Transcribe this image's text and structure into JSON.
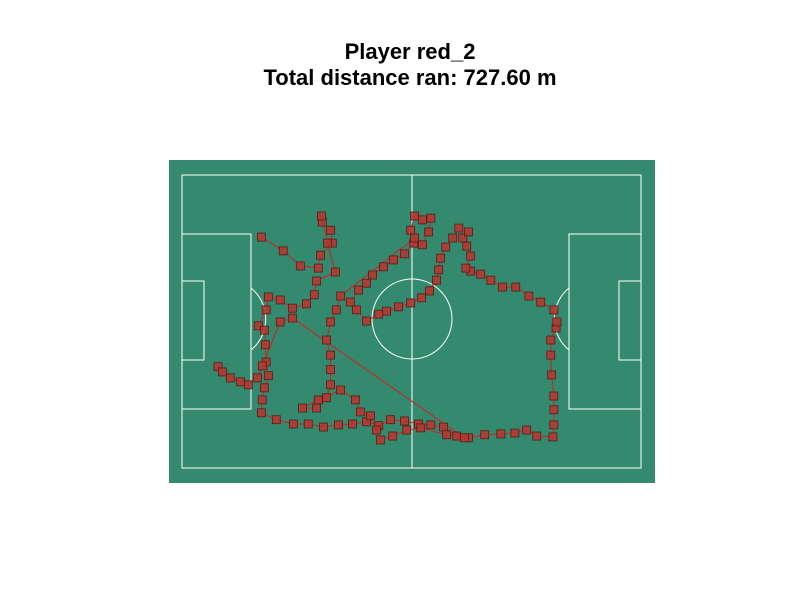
{
  "chart_data": {
    "type": "line",
    "marker": "square",
    "title": [
      "Player red_2",
      "Total distance ran: 727.60 m"
    ],
    "line_color": "#d42020",
    "marker_color": "#b03a33",
    "marker_edge": "#5a1a16",
    "pitch_color": "#338a6e",
    "xlim": [
      -3,
      108
    ],
    "ylim": [
      71.5,
      -3.5
    ],
    "x": [
      18.1,
      23.1,
      27.0,
      31.1,
      31.6,
      34.3,
      33.9,
      32.0,
      31.8,
      33.2,
      35.0,
      30.7,
      30.2,
      28.4,
      25.2,
      22.4,
      19.7,
      19.2,
      17.4,
      18.8,
      19.0,
      19.2,
      19.7,
      18.8,
      18.3,
      18.1,
      21.5,
      25.4,
      28.8,
      32.3,
      35.7,
      38.9,
      42.1,
      44.9,
      47.6,
      50.8,
      54.0,
      56.8,
      59.7,
      62.7,
      65.4,
      69.1,
      72.8,
      76.0,
      78.7,
      81.0,
      84.7,
      84.9,
      84.9,
      84.9,
      84.4,
      84.2,
      84.2,
      85.4,
      85.6,
      84.9,
      81.9,
      79.2,
      76.2,
      73.2,
      70.5,
      68.2,
      65.9,
      64.8,
      65.9,
      65.0,
      64.1,
      65.4,
      63.2,
      61.8,
      60.2,
      59.0,
      58.6,
      58.1,
      56.5,
      54.7,
      52.2,
      49.4,
      46.7,
      44.9,
      42.1,
      39.8,
      38.4,
      40.3,
      42.1,
      43.5,
      46.0,
      48.3,
      50.8,
      52.9,
      52.2,
      53.1,
      54.9,
      56.8,
      56.3,
      54.9,
      53.1,
      36.2,
      35.2,
      33.9,
      33.0,
      33.9,
      33.9,
      33.9,
      33.0,
      30.7,
      27.5,
      31.1,
      36.2,
      39.6,
      40.7,
      43.0,
      44.4,
      45.3,
      48.1,
      51.3,
      54.5,
      60.4,
      64.5,
      25.2,
      22.4,
      18.3,
      17.2,
      15.1,
      13.3,
      11.0,
      8.2,
      9.2
    ],
    "y": [
      14.4,
      17.6,
      21.1,
      21.6,
      18.6,
      15.8,
      12.8,
      10.9,
      9.5,
      15.8,
      22.5,
      24.6,
      27.8,
      29.9,
      30.9,
      29.0,
      28.3,
      31.3,
      35.0,
      36.0,
      39.4,
      43.4,
      46.6,
      49.4,
      52.2,
      55.2,
      56.8,
      57.8,
      57.8,
      58.5,
      58.0,
      57.8,
      57.3,
      58.2,
      56.8,
      57.1,
      57.8,
      58.0,
      58.5,
      60.6,
      61.0,
      60.3,
      60.1,
      59.9,
      59.2,
      60.6,
      60.8,
      58.0,
      54.5,
      51.3,
      46.4,
      41.8,
      38.3,
      35.5,
      34.1,
      31.3,
      29.5,
      28.1,
      26.0,
      26.0,
      24.4,
      23.0,
      22.3,
      21.6,
      18.8,
      16.5,
      14.6,
      13.2,
      12.3,
      14.6,
      16.7,
      19.3,
      22.0,
      24.4,
      26.9,
      28.5,
      29.7,
      30.6,
      31.6,
      32.3,
      33.9,
      31.3,
      29.5,
      26.7,
      25.1,
      23.2,
      21.3,
      19.7,
      18.3,
      15.8,
      12.8,
      9.5,
      10.4,
      10.0,
      13.2,
      16.2,
      14.6,
      28.1,
      31.3,
      34.1,
      38.3,
      41.8,
      45.2,
      48.7,
      51.7,
      54.1,
      54.1,
      52.2,
      49.9,
      52.2,
      55.0,
      55.9,
      59.2,
      61.5,
      60.6,
      59.2,
      58.7,
      60.3,
      61.0,
      33.2,
      34.1,
      44.3,
      47.1,
      48.7,
      48.0,
      47.1,
      44.5,
      45.7
    ]
  }
}
